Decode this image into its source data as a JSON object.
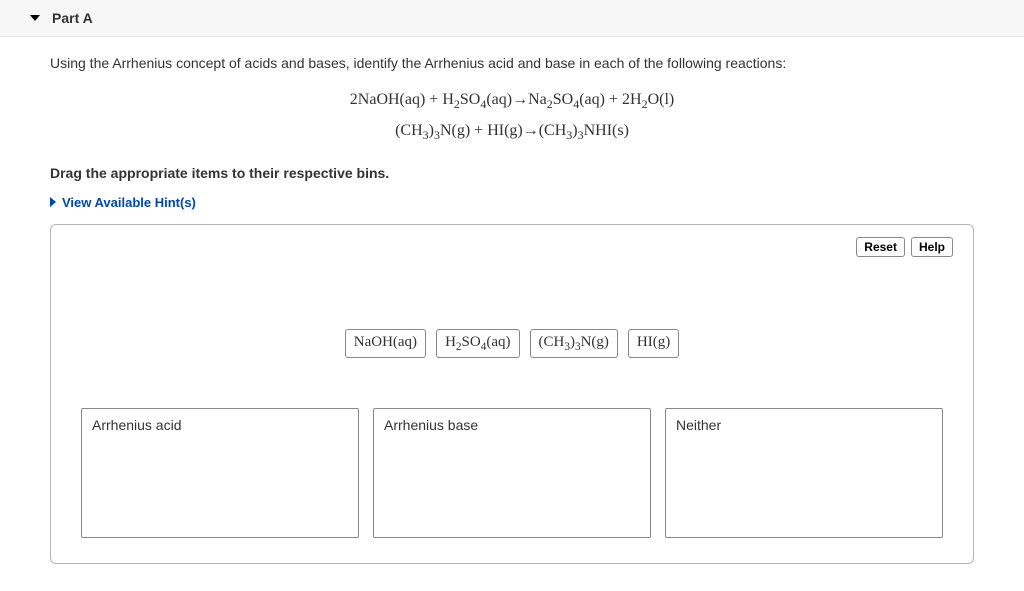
{
  "header": {
    "part_label": "Part A"
  },
  "intro": "Using the Arrhenius concept of acids and bases, identify the Arrhenius acid and base in each of the following reactions:",
  "equations": {
    "line1_html": "2NaOH(aq) + H<sub>2</sub>SO<sub>4</sub>(aq)→Na<sub>2</sub>SO<sub>4</sub>(aq) + 2H<sub>2</sub>O(l)",
    "line2_html": "(CH<sub>3</sub>)<sub>3</sub>N(g) + HI(g)→(CH<sub>3</sub>)<sub>3</sub>NHI(s)"
  },
  "instruction": "Drag the appropriate items to their respective bins.",
  "hints_label": "View Available Hint(s)",
  "workspace": {
    "buttons": {
      "reset": "Reset",
      "help": "Help"
    },
    "draggables": [
      "NaOH(aq)",
      "H<sub>2</sub>SO<sub>4</sub>(aq)",
      "(CH<sub>3</sub>)<sub>3</sub>N(g)",
      "HI(g)"
    ],
    "bins": [
      "Arrhenius acid",
      "Arrhenius base",
      "Neither"
    ]
  }
}
